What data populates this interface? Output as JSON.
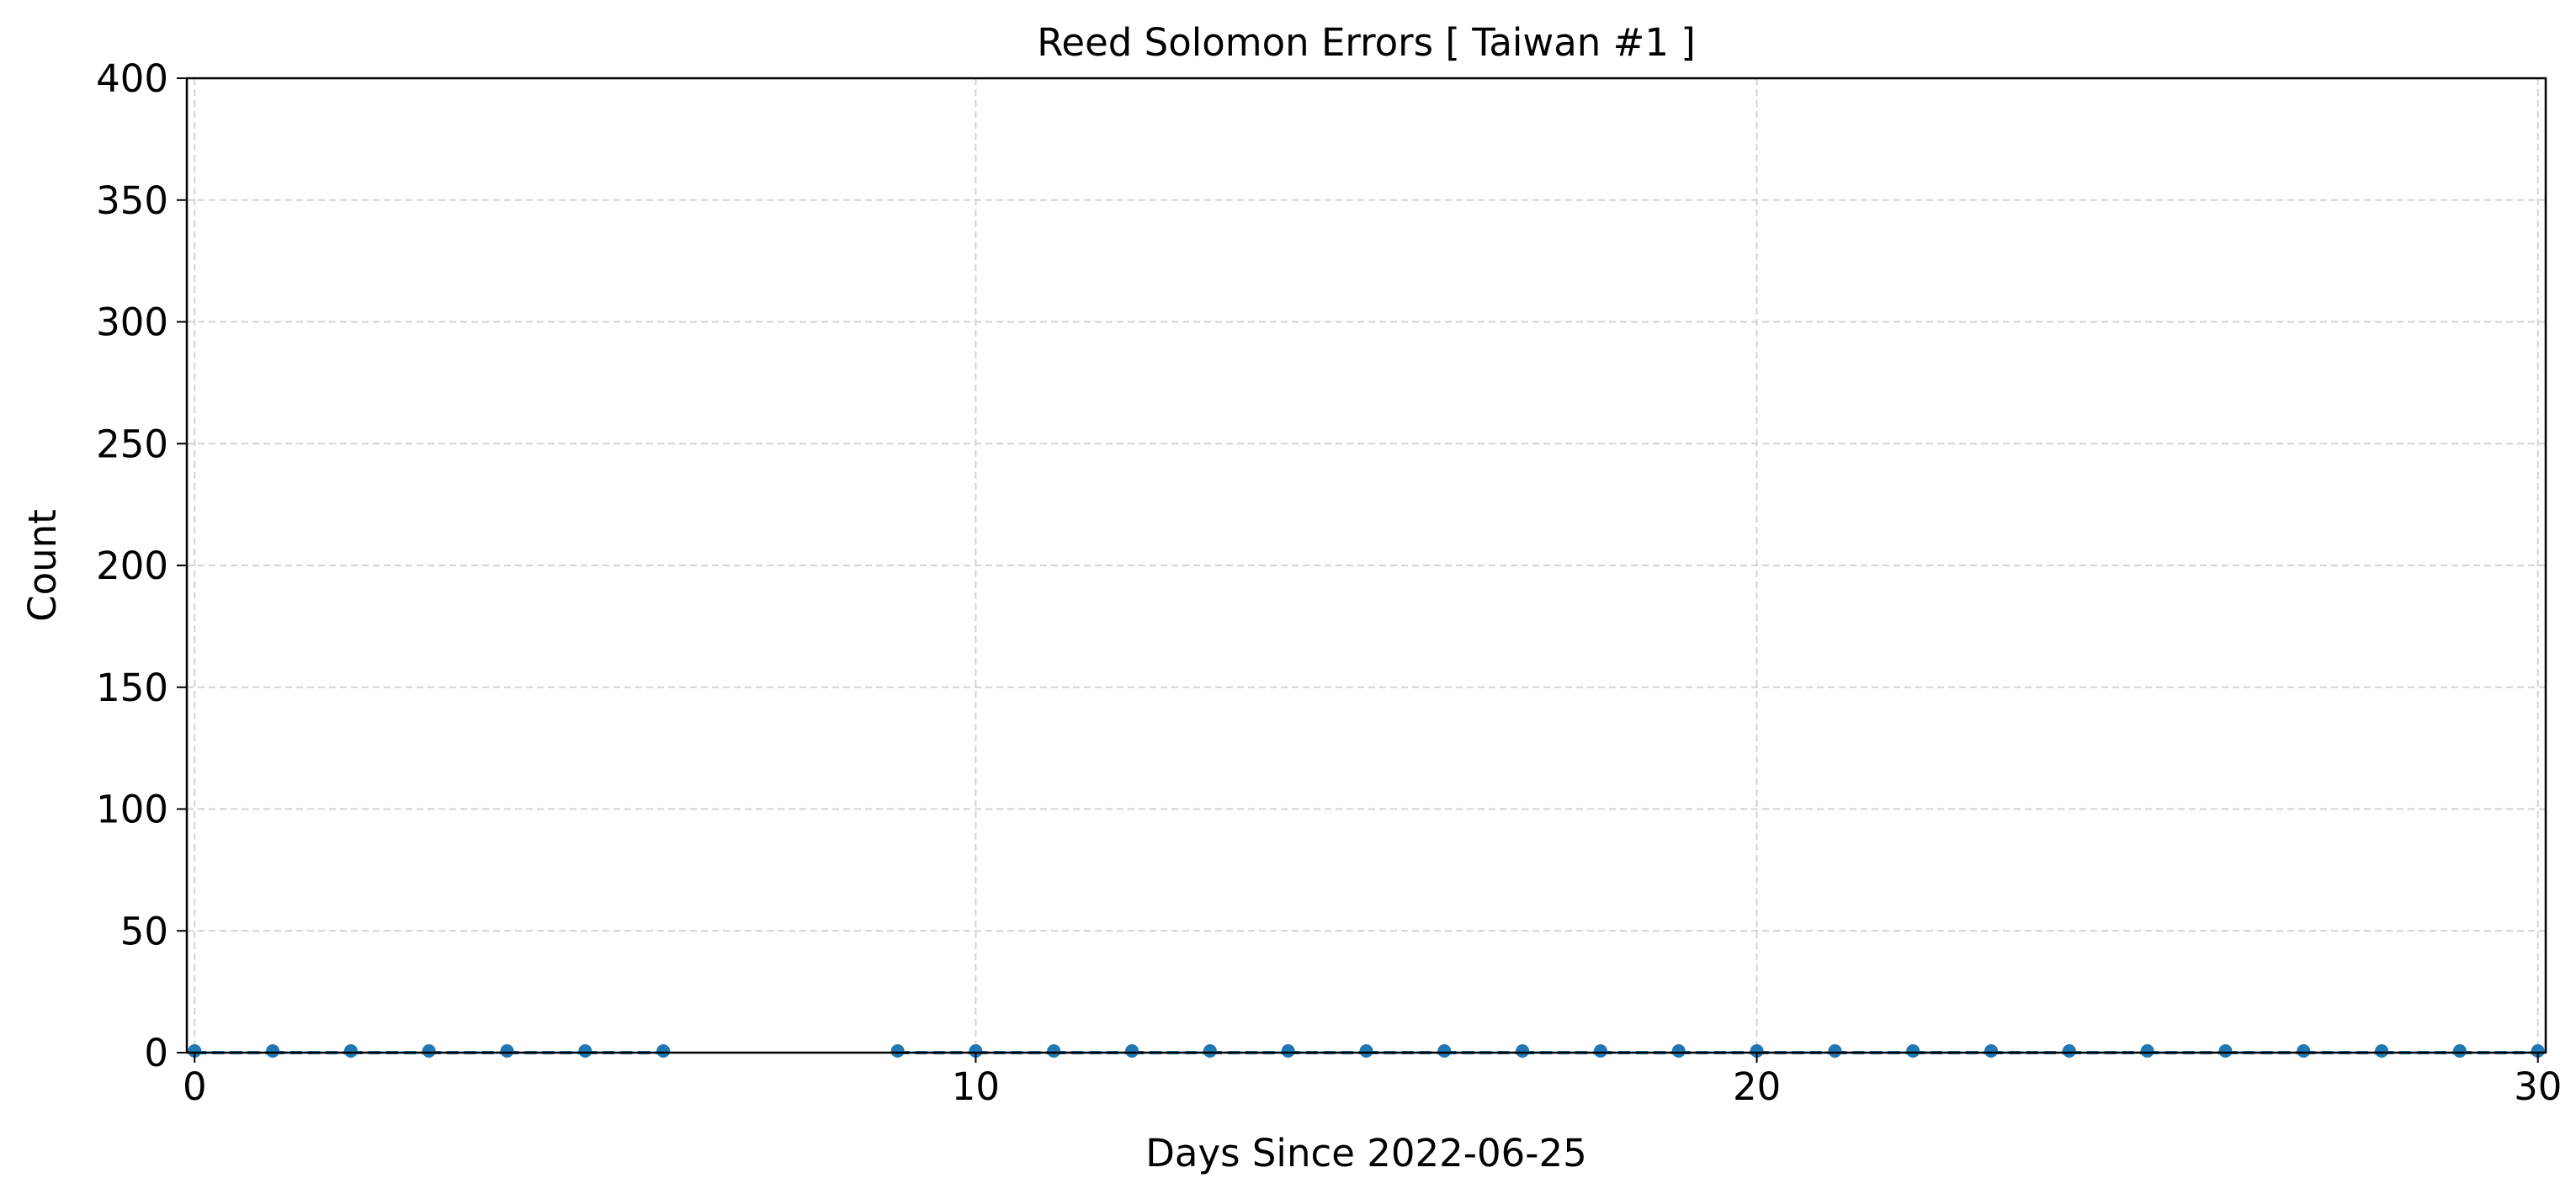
{
  "chart_data": {
    "type": "line",
    "title": "Reed Solomon Errors [ Taiwan #1 ]",
    "xlabel": "Days Since 2022-06-25",
    "ylabel": "Count",
    "xlim": [
      -0.1,
      30.1
    ],
    "ylim": [
      0,
      400
    ],
    "xticks": [
      0,
      10,
      20,
      30
    ],
    "yticks": [
      0,
      50,
      100,
      150,
      200,
      250,
      300,
      350,
      400
    ],
    "grid": true,
    "line_style": "dashed",
    "marker": "circle",
    "color": "#1f77b4",
    "series": [
      {
        "x": [
          0,
          1,
          2,
          3,
          4,
          5,
          6,
          9,
          10,
          11,
          12,
          13,
          14,
          15,
          16,
          17,
          18,
          19,
          20,
          21,
          22,
          23,
          24,
          25,
          26,
          27,
          28,
          29,
          30
        ],
        "y": [
          0,
          0,
          0,
          0,
          0,
          0,
          0,
          0,
          0,
          0,
          0,
          0,
          0,
          0,
          0,
          0,
          0,
          0,
          0,
          0,
          0,
          0,
          0,
          0,
          0,
          0,
          0,
          0,
          0
        ]
      }
    ]
  }
}
